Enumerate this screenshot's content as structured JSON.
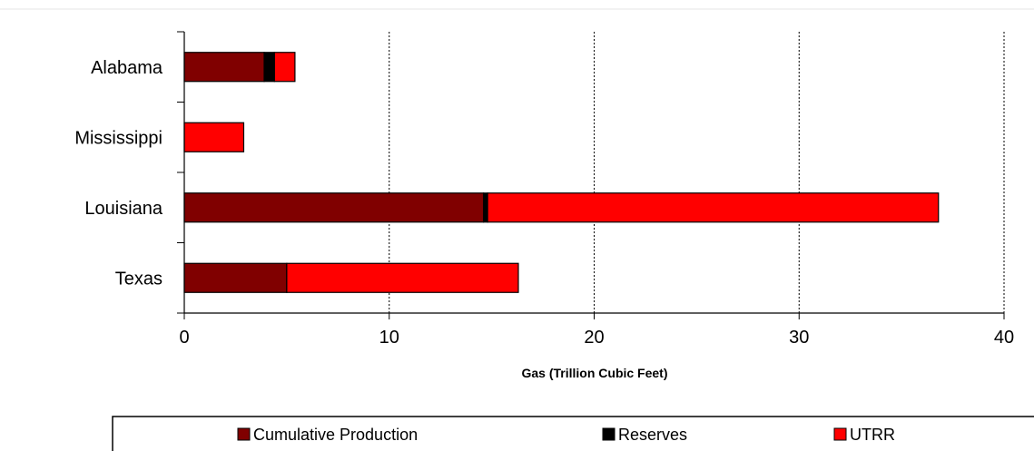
{
  "chart_data": {
    "type": "bar",
    "orientation": "horizontal",
    "stacked": true,
    "categories": [
      "Alabama",
      "Mississippi",
      "Louisiana",
      "Texas"
    ],
    "series": [
      {
        "name": "Cumulative Production",
        "values": [
          3.9,
          0,
          14.6,
          5.0
        ],
        "color": "#800000"
      },
      {
        "name": "Reserves",
        "values": [
          0.5,
          0,
          0.2,
          0
        ],
        "color": "#000000"
      },
      {
        "name": "UTRR",
        "values": [
          1.0,
          2.9,
          22.0,
          11.3
        ],
        "color": "#ff0000"
      }
    ],
    "xlabel": "Gas (Trillion Cubic Feet)",
    "xlim": [
      0,
      40
    ],
    "xticks": [
      "0",
      "10",
      "20",
      "30",
      "40"
    ],
    "grid": "vertical dotted",
    "legend_position": "bottom"
  }
}
